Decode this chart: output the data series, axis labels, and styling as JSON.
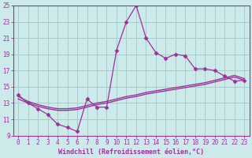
{
  "xlabel": "Windchill (Refroidissement éolien,°C)",
  "bg_color": "#cceaea",
  "grid_color": "#aacccc",
  "line_color": "#993399",
  "wiggly": [
    14.0,
    13.0,
    12.3,
    11.6,
    10.4,
    10.0,
    9.5,
    13.5,
    12.5,
    12.5,
    19.5,
    23.0,
    25.0,
    21.0,
    19.2,
    18.5,
    19.0,
    18.8,
    17.2,
    17.2,
    17.0,
    16.3,
    15.7,
    15.8
  ],
  "flat1": [
    13.8,
    13.2,
    12.8,
    12.5,
    12.3,
    12.3,
    12.4,
    12.7,
    13.0,
    13.2,
    13.5,
    13.8,
    14.0,
    14.3,
    14.5,
    14.7,
    14.9,
    15.1,
    15.3,
    15.5,
    15.8,
    16.1,
    16.4,
    16.0
  ],
  "flat2": [
    13.5,
    13.0,
    12.6,
    12.3,
    12.1,
    12.1,
    12.2,
    12.5,
    12.8,
    13.0,
    13.3,
    13.6,
    13.8,
    14.1,
    14.3,
    14.5,
    14.7,
    14.9,
    15.1,
    15.3,
    15.6,
    15.9,
    16.2,
    15.8
  ],
  "x": [
    0,
    1,
    2,
    3,
    4,
    5,
    6,
    7,
    8,
    9,
    10,
    11,
    12,
    13,
    14,
    15,
    16,
    17,
    18,
    19,
    20,
    21,
    22,
    23
  ],
  "ylim": [
    9,
    25
  ],
  "yticks": [
    9,
    11,
    13,
    15,
    17,
    19,
    21,
    23,
    25
  ],
  "xlim": [
    -0.5,
    23.5
  ],
  "xticks": [
    0,
    1,
    2,
    3,
    4,
    5,
    6,
    7,
    8,
    9,
    10,
    11,
    12,
    13,
    14,
    15,
    16,
    17,
    18,
    19,
    20,
    21,
    22,
    23
  ],
  "tick_fontsize": 5.5,
  "xlabel_fontsize": 6.0
}
